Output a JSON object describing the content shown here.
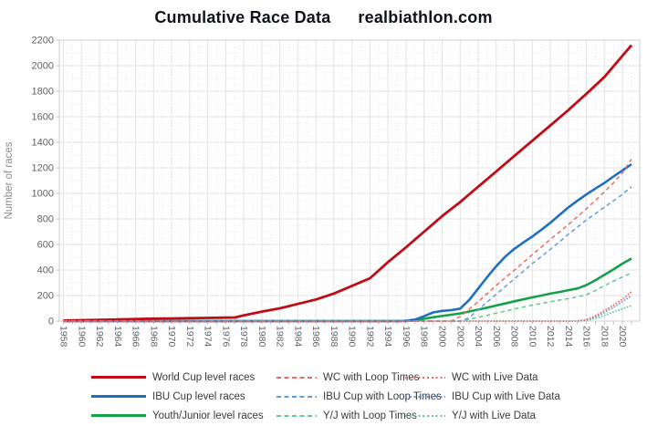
{
  "title": {
    "left": "Cumulative Race Data",
    "right": "realbiathlon.com"
  },
  "chart_data": {
    "type": "line",
    "title": "Cumulative Race Data",
    "watermark": "realbiathlon.com",
    "xlabel": "",
    "ylabel": "Number of races",
    "xlim": [
      1958,
      2021
    ],
    "ylim": [
      0,
      2200
    ],
    "grid": true,
    "legend_position": "bottom",
    "x_major_ticks": [
      1958,
      1960,
      1962,
      1964,
      1966,
      1968,
      1970,
      1972,
      1974,
      1976,
      1978,
      1980,
      1982,
      1984,
      1986,
      1988,
      1990,
      1992,
      1994,
      1996,
      1998,
      2000,
      2002,
      2004,
      2006,
      2008,
      2010,
      2012,
      2014,
      2016,
      2018,
      2020
    ],
    "y_ticks": [
      0,
      200,
      400,
      600,
      800,
      1000,
      1200,
      1400,
      1600,
      1800,
      2000,
      2200
    ],
    "draw_order": [
      2,
      1,
      0,
      5,
      4,
      3,
      8,
      7,
      6
    ],
    "series": [
      {
        "id": "world-cup-level-races",
        "name": "World Cup level races",
        "color": "#c00c16",
        "style": "solid",
        "width": 2.8,
        "points": [
          [
            1958,
            4
          ],
          [
            1960,
            7
          ],
          [
            1962,
            10
          ],
          [
            1964,
            13
          ],
          [
            1966,
            16
          ],
          [
            1968,
            19
          ],
          [
            1970,
            21
          ],
          [
            1972,
            23
          ],
          [
            1974,
            25
          ],
          [
            1976,
            27
          ],
          [
            1977,
            28
          ],
          [
            1978,
            45
          ],
          [
            1980,
            74
          ],
          [
            1982,
            100
          ],
          [
            1984,
            134
          ],
          [
            1986,
            169
          ],
          [
            1988,
            216
          ],
          [
            1990,
            276
          ],
          [
            1992,
            336
          ],
          [
            1994,
            462
          ],
          [
            1996,
            578
          ],
          [
            1998,
            700
          ],
          [
            2000,
            822
          ],
          [
            2002,
            932
          ],
          [
            2004,
            1052
          ],
          [
            2006,
            1172
          ],
          [
            2008,
            1292
          ],
          [
            2010,
            1412
          ],
          [
            2012,
            1532
          ],
          [
            2014,
            1652
          ],
          [
            2016,
            1780
          ],
          [
            2018,
            1912
          ],
          [
            2020,
            2078
          ],
          [
            2021,
            2160
          ]
        ]
      },
      {
        "id": "ibu-cup-level-races",
        "name": "IBU Cup level races",
        "color": "#1e6fc0",
        "style": "solid",
        "width": 2.6,
        "points": [
          [
            1958,
            0
          ],
          [
            1995,
            0
          ],
          [
            1996,
            2
          ],
          [
            1997,
            12
          ],
          [
            1998,
            38
          ],
          [
            1999,
            68
          ],
          [
            2000,
            80
          ],
          [
            2001,
            86
          ],
          [
            2002,
            98
          ],
          [
            2003,
            165
          ],
          [
            2004,
            255
          ],
          [
            2005,
            345
          ],
          [
            2006,
            430
          ],
          [
            2007,
            505
          ],
          [
            2008,
            565
          ],
          [
            2009,
            615
          ],
          [
            2010,
            662
          ],
          [
            2011,
            715
          ],
          [
            2012,
            770
          ],
          [
            2013,
            830
          ],
          [
            2014,
            890
          ],
          [
            2015,
            942
          ],
          [
            2016,
            992
          ],
          [
            2017,
            1038
          ],
          [
            2018,
            1082
          ],
          [
            2019,
            1132
          ],
          [
            2020,
            1180
          ],
          [
            2021,
            1228
          ]
        ]
      },
      {
        "id": "youth-junior-level-races",
        "name": "Youth/Junior level races",
        "color": "#16a04a",
        "style": "solid",
        "width": 2.6,
        "points": [
          [
            1958,
            0
          ],
          [
            1996,
            0
          ],
          [
            1997,
            6
          ],
          [
            1998,
            18
          ],
          [
            1999,
            30
          ],
          [
            2000,
            40
          ],
          [
            2001,
            50
          ],
          [
            2002,
            60
          ],
          [
            2003,
            75
          ],
          [
            2004,
            90
          ],
          [
            2005,
            105
          ],
          [
            2006,
            122
          ],
          [
            2007,
            138
          ],
          [
            2008,
            155
          ],
          [
            2009,
            170
          ],
          [
            2010,
            186
          ],
          [
            2011,
            200
          ],
          [
            2012,
            215
          ],
          [
            2013,
            228
          ],
          [
            2014,
            242
          ],
          [
            2015,
            256
          ],
          [
            2016,
            282
          ],
          [
            2017,
            320
          ],
          [
            2018,
            362
          ],
          [
            2019,
            404
          ],
          [
            2020,
            450
          ],
          [
            2021,
            490
          ]
        ]
      },
      {
        "id": "wc-with-loop-times",
        "name": "WC with Loop Times",
        "color": "#ea6a65",
        "style": "dashed",
        "width": 1.5,
        "points": [
          [
            1958,
            0
          ],
          [
            2001,
            0
          ],
          [
            2002,
            35
          ],
          [
            2003,
            92
          ],
          [
            2004,
            152
          ],
          [
            2005,
            215
          ],
          [
            2006,
            280
          ],
          [
            2007,
            340
          ],
          [
            2008,
            398
          ],
          [
            2009,
            458
          ],
          [
            2010,
            520
          ],
          [
            2011,
            580
          ],
          [
            2012,
            640
          ],
          [
            2013,
            698
          ],
          [
            2014,
            756
          ],
          [
            2015,
            818
          ],
          [
            2016,
            880
          ],
          [
            2017,
            945
          ],
          [
            2018,
            1012
          ],
          [
            2019,
            1082
          ],
          [
            2020,
            1162
          ],
          [
            2021,
            1268
          ]
        ]
      },
      {
        "id": "ibu-cup-with-loop-times",
        "name": "IBU Cup with Loop Times",
        "color": "#5f9fd8",
        "style": "dashed",
        "width": 1.5,
        "points": [
          [
            1958,
            0
          ],
          [
            2002,
            0
          ],
          [
            2003,
            25
          ],
          [
            2004,
            90
          ],
          [
            2005,
            150
          ],
          [
            2006,
            210
          ],
          [
            2007,
            270
          ],
          [
            2008,
            330
          ],
          [
            2009,
            390
          ],
          [
            2010,
            450
          ],
          [
            2011,
            505
          ],
          [
            2012,
            562
          ],
          [
            2013,
            620
          ],
          [
            2014,
            680
          ],
          [
            2015,
            736
          ],
          [
            2016,
            792
          ],
          [
            2017,
            842
          ],
          [
            2018,
            892
          ],
          [
            2019,
            942
          ],
          [
            2020,
            992
          ],
          [
            2021,
            1052
          ]
        ]
      },
      {
        "id": "yj-with-loop-times",
        "name": "Y/J with Loop Times",
        "color": "#62c88f",
        "style": "dashed",
        "width": 1.5,
        "points": [
          [
            1958,
            0
          ],
          [
            2002,
            0
          ],
          [
            2003,
            15
          ],
          [
            2004,
            30
          ],
          [
            2005,
            46
          ],
          [
            2006,
            62
          ],
          [
            2007,
            78
          ],
          [
            2008,
            95
          ],
          [
            2009,
            110
          ],
          [
            2010,
            125
          ],
          [
            2011,
            138
          ],
          [
            2012,
            152
          ],
          [
            2013,
            164
          ],
          [
            2014,
            176
          ],
          [
            2015,
            190
          ],
          [
            2016,
            206
          ],
          [
            2017,
            240
          ],
          [
            2018,
            278
          ],
          [
            2019,
            312
          ],
          [
            2020,
            346
          ],
          [
            2021,
            378
          ]
        ]
      },
      {
        "id": "wc-with-live-data",
        "name": "WC with Live Data",
        "color": "#ea6a65",
        "style": "dotted",
        "width": 1.8,
        "points": [
          [
            1958,
            0
          ],
          [
            2014,
            0
          ],
          [
            2015,
            2
          ],
          [
            2016,
            12
          ],
          [
            2017,
            42
          ],
          [
            2018,
            82
          ],
          [
            2019,
            126
          ],
          [
            2020,
            172
          ],
          [
            2021,
            230
          ]
        ]
      },
      {
        "id": "ibu-cup-with-live-data",
        "name": "IBU Cup with Live Data",
        "color": "#5f9fd8",
        "style": "dotted",
        "width": 1.8,
        "points": [
          [
            1958,
            0
          ],
          [
            2014,
            0
          ],
          [
            2015,
            1
          ],
          [
            2016,
            8
          ],
          [
            2017,
            32
          ],
          [
            2018,
            68
          ],
          [
            2019,
            108
          ],
          [
            2020,
            152
          ],
          [
            2021,
            200
          ]
        ]
      },
      {
        "id": "yj-with-live-data",
        "name": "Y/J with Live Data",
        "color": "#62c88f",
        "style": "dotted",
        "width": 1.8,
        "points": [
          [
            1958,
            0
          ],
          [
            2014,
            0
          ],
          [
            2015,
            1
          ],
          [
            2016,
            5
          ],
          [
            2017,
            20
          ],
          [
            2018,
            45
          ],
          [
            2019,
            72
          ],
          [
            2020,
            96
          ],
          [
            2021,
            122
          ]
        ]
      }
    ]
  },
  "legend": {
    "columns": [
      {
        "series": [
          0,
          1,
          2
        ]
      },
      {
        "series": [
          3,
          4,
          5
        ]
      },
      {
        "series": [
          6,
          7,
          8
        ]
      }
    ]
  }
}
